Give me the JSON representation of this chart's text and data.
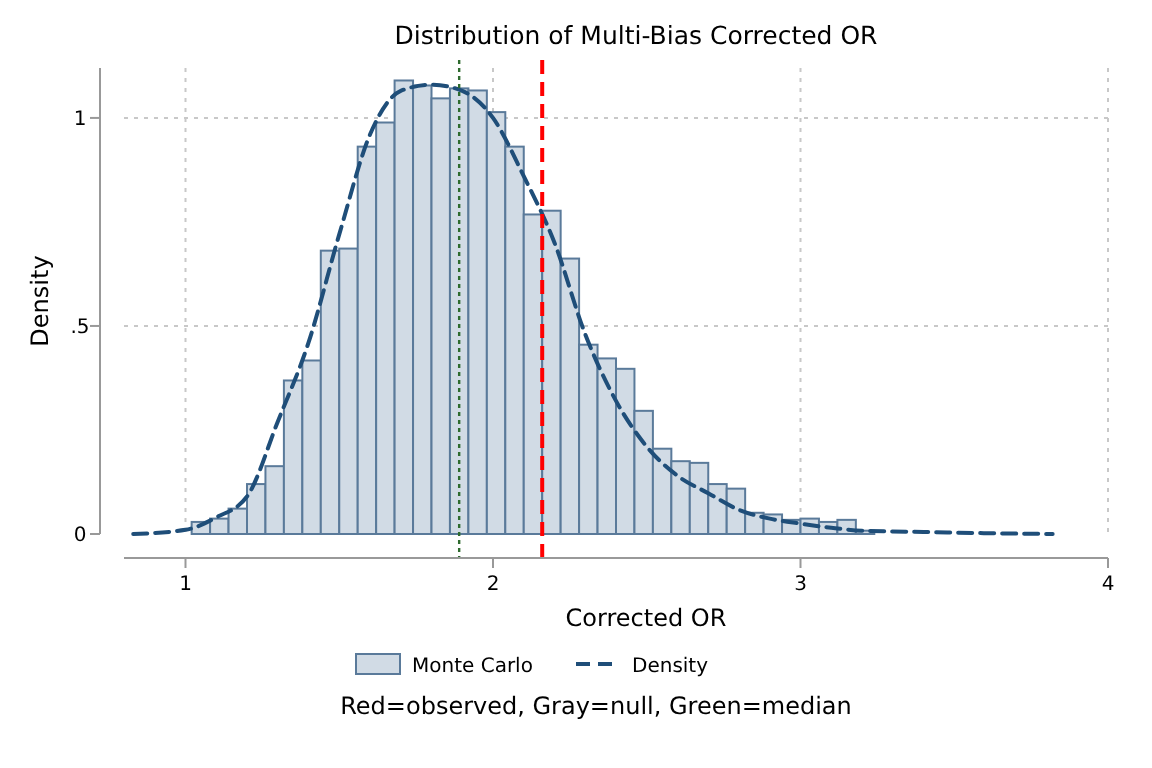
{
  "chart_data": {
    "type": "histogram",
    "title": "Distribution of Multi-Bias Corrected OR",
    "xlabel": "Corrected OR",
    "ylabel": "Density",
    "xlim": [
      0.8,
      4
    ],
    "xticks": [
      1,
      2,
      3,
      4
    ],
    "ylim": [
      0,
      1.12
    ],
    "yticks": [
      0,
      {
        "value": 0.5,
        "label": ".5"
      },
      1
    ],
    "grid": true,
    "legend": "bottom",
    "bins": [
      1.02,
      1.08,
      1.14,
      1.2,
      1.26,
      1.32,
      1.38,
      1.44,
      1.5,
      1.56,
      1.62,
      1.68,
      1.74,
      1.8,
      1.86,
      1.92,
      1.98,
      2.04,
      2.1,
      2.16,
      2.22,
      2.28,
      2.34,
      2.4,
      2.46,
      2.52,
      2.58,
      2.64,
      2.7,
      2.76,
      2.82,
      2.88,
      2.94,
      3.0,
      3.06,
      3.12,
      3.18,
      3.24
    ],
    "series": [
      {
        "name": "Monte Carlo",
        "color": "#d1dbe5",
        "values": [
          0.029,
          0.037,
          0.061,
          0.12,
          0.163,
          0.369,
          0.417,
          0.681,
          0.686,
          0.931,
          0.989,
          1.09,
          1.078,
          1.047,
          1.071,
          1.066,
          1.014,
          0.931,
          0.768,
          0.777,
          0.662,
          0.455,
          0.422,
          0.397,
          0.296,
          0.205,
          0.175,
          0.171,
          0.12,
          0.109,
          0.051,
          0.047,
          0.034,
          0.037,
          0.029,
          0.034,
          0.008
        ]
      },
      {
        "name": "Density",
        "type": "line",
        "color": "#1f4e79",
        "line_style": "dashed",
        "x": [
          0.83,
          1.0,
          1.1,
          1.2,
          1.3,
          1.4,
          1.5,
          1.6,
          1.7,
          1.8,
          1.9,
          2.0,
          2.1,
          2.2,
          2.3,
          2.4,
          2.5,
          2.6,
          2.7,
          2.8,
          2.9,
          3.0,
          3.1,
          3.2,
          3.4,
          3.6,
          3.82
        ],
        "values": [
          0,
          0.01,
          0.04,
          0.09,
          0.27,
          0.46,
          0.72,
          0.96,
          1.065,
          1.08,
          1.065,
          1.0,
          0.86,
          0.7,
          0.48,
          0.32,
          0.21,
          0.14,
          0.098,
          0.058,
          0.037,
          0.025,
          0.015,
          0.008,
          0.005,
          0.002,
          0
        ]
      }
    ],
    "ref_lines": [
      {
        "axis": "x",
        "value": 1.89,
        "color": "#2e6b2e",
        "line_style": "dotted"
      },
      {
        "axis": "x",
        "value": 2.16,
        "color": "#ff0000",
        "line_style": "dashed"
      }
    ],
    "annotations": [
      "Red=observed, Gray=null, Green=median"
    ]
  }
}
